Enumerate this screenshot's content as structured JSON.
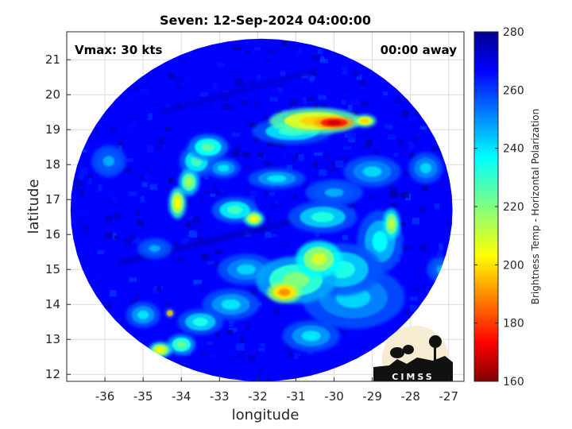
{
  "chart_data": {
    "type": "heatmap",
    "title": "Seven: 12-Sep-2024 04:00:00",
    "xlabel": "longitude",
    "ylabel": "latitude",
    "xlim": [
      -37.0,
      -26.6
    ],
    "ylim": [
      11.8,
      21.8
    ],
    "xticks": [
      -36,
      -35,
      -34,
      -33,
      -32,
      -31,
      -30,
      -29,
      -28,
      -27
    ],
    "yticks": [
      12,
      13,
      14,
      15,
      16,
      17,
      18,
      19,
      20,
      21
    ],
    "grid": true,
    "annotations": {
      "top_left": "Vmax: 30 kts",
      "top_right": "00:00 away"
    },
    "colorbar": {
      "label": "Brightness Temp - Horizontal Polarization",
      "range": [
        160,
        280
      ],
      "ticks": [
        160,
        180,
        200,
        220,
        240,
        260,
        280
      ],
      "colormap": "jet"
    },
    "swath": {
      "center": [
        -31.9,
        16.7
      ],
      "radius_lon": 5.0,
      "radius_lat": 4.9,
      "background_value": 265
    },
    "features": [
      {
        "lon": -30.0,
        "lat": 19.2,
        "value": 168,
        "sx": 0.35,
        "sy": 0.12
      },
      {
        "lon": -30.5,
        "lat": 19.25,
        "value": 200,
        "sx": 0.8,
        "sy": 0.25
      },
      {
        "lon": -29.2,
        "lat": 19.25,
        "value": 200,
        "sx": 0.2,
        "sy": 0.12
      },
      {
        "lon": -31.1,
        "lat": 18.95,
        "value": 230,
        "sx": 0.7,
        "sy": 0.25
      },
      {
        "lon": -33.3,
        "lat": 18.5,
        "value": 225,
        "sx": 0.35,
        "sy": 0.25
      },
      {
        "lon": -33.6,
        "lat": 18.1,
        "value": 228,
        "sx": 0.3,
        "sy": 0.3
      },
      {
        "lon": -33.8,
        "lat": 17.5,
        "value": 215,
        "sx": 0.18,
        "sy": 0.25
      },
      {
        "lon": -34.1,
        "lat": 16.9,
        "value": 205,
        "sx": 0.15,
        "sy": 0.3
      },
      {
        "lon": -32.9,
        "lat": 17.9,
        "value": 238,
        "sx": 0.3,
        "sy": 0.2
      },
      {
        "lon": -32.1,
        "lat": 16.45,
        "value": 205,
        "sx": 0.18,
        "sy": 0.15
      },
      {
        "lon": -32.6,
        "lat": 16.7,
        "value": 228,
        "sx": 0.4,
        "sy": 0.25
      },
      {
        "lon": -31.5,
        "lat": 17.6,
        "value": 238,
        "sx": 0.5,
        "sy": 0.2
      },
      {
        "lon": -30.3,
        "lat": 16.5,
        "value": 232,
        "sx": 0.6,
        "sy": 0.3
      },
      {
        "lon": -28.5,
        "lat": 16.3,
        "value": 212,
        "sx": 0.15,
        "sy": 0.3
      },
      {
        "lon": -28.8,
        "lat": 15.8,
        "value": 235,
        "sx": 0.4,
        "sy": 0.6
      },
      {
        "lon": -30.4,
        "lat": 15.3,
        "value": 210,
        "sx": 0.4,
        "sy": 0.35
      },
      {
        "lon": -29.8,
        "lat": 15.0,
        "value": 232,
        "sx": 0.7,
        "sy": 0.5
      },
      {
        "lon": -31.3,
        "lat": 14.35,
        "value": 192,
        "sx": 0.3,
        "sy": 0.2
      },
      {
        "lon": -31.0,
        "lat": 14.7,
        "value": 220,
        "sx": 0.7,
        "sy": 0.45
      },
      {
        "lon": -29.5,
        "lat": 14.2,
        "value": 240,
        "sx": 0.9,
        "sy": 0.6
      },
      {
        "lon": -34.55,
        "lat": 12.7,
        "value": 205,
        "sx": 0.2,
        "sy": 0.15
      },
      {
        "lon": -34.0,
        "lat": 12.85,
        "value": 222,
        "sx": 0.25,
        "sy": 0.2
      },
      {
        "lon": -34.3,
        "lat": 13.75,
        "value": 190,
        "sx": 0.06,
        "sy": 0.05
      },
      {
        "lon": -33.5,
        "lat": 13.5,
        "value": 232,
        "sx": 0.4,
        "sy": 0.25
      },
      {
        "lon": -32.7,
        "lat": 14.0,
        "value": 238,
        "sx": 0.5,
        "sy": 0.3
      },
      {
        "lon": -32.3,
        "lat": 15.0,
        "value": 240,
        "sx": 0.5,
        "sy": 0.3
      },
      {
        "lon": -35.0,
        "lat": 13.7,
        "value": 238,
        "sx": 0.3,
        "sy": 0.25
      },
      {
        "lon": -30.6,
        "lat": 13.1,
        "value": 238,
        "sx": 0.5,
        "sy": 0.3
      },
      {
        "lon": -29.0,
        "lat": 17.8,
        "value": 240,
        "sx": 0.5,
        "sy": 0.3
      },
      {
        "lon": -27.6,
        "lat": 17.9,
        "value": 240,
        "sx": 0.3,
        "sy": 0.3
      },
      {
        "lon": -30.0,
        "lat": 17.2,
        "value": 245,
        "sx": 0.5,
        "sy": 0.25
      },
      {
        "lon": -35.9,
        "lat": 18.1,
        "value": 245,
        "sx": 0.3,
        "sy": 0.3
      },
      {
        "lon": -34.7,
        "lat": 15.6,
        "value": 245,
        "sx": 0.3,
        "sy": 0.2
      },
      {
        "lon": -27.2,
        "lat": 15.0,
        "value": 245,
        "sx": 0.25,
        "sy": 0.25
      }
    ],
    "cold_streaks": [
      {
        "from": [
          -35.6,
          15.2
        ],
        "to": [
          -29.5,
          16.8
        ],
        "value": 272
      },
      {
        "from": [
          -34.5,
          19.5
        ],
        "to": [
          -30.5,
          20.7
        ],
        "value": 270
      }
    ]
  },
  "logo": {
    "text": "CIMSS"
  }
}
